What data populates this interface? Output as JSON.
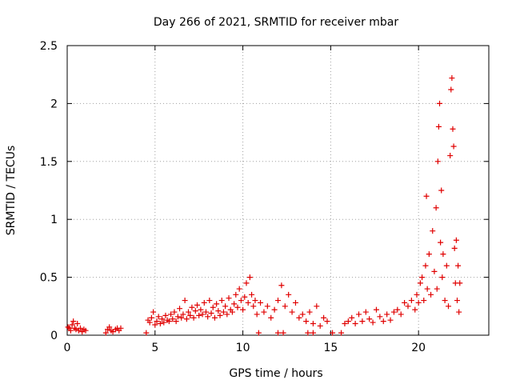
{
  "chart_data": {
    "type": "scatter",
    "title": "Day 266 of 2021, SRMTID for receiver mbar",
    "xlabel": "GPS time / hours",
    "ylabel": "SRMTID / TECUs",
    "xlim": [
      0,
      24
    ],
    "ylim": [
      0,
      2.5
    ],
    "x_ticks": [
      0,
      5,
      10,
      15,
      20
    ],
    "x_tick_labels": [
      "0",
      "5",
      "10",
      "15",
      "20"
    ],
    "y_ticks": [
      0,
      0.5,
      1,
      1.5,
      2,
      2.5
    ],
    "y_tick_labels": [
      "0",
      "0.5",
      "1",
      "1.5",
      "2",
      "2.5"
    ],
    "grid": true,
    "legend": "none",
    "marker": "plus",
    "series": [
      {
        "name": "SRMTID",
        "color": "#e00000",
        "points": [
          [
            0.05,
            0.07
          ],
          [
            0.12,
            0.06
          ],
          [
            0.2,
            0.04
          ],
          [
            0.28,
            0.09
          ],
          [
            0.35,
            0.12
          ],
          [
            0.42,
            0.06
          ],
          [
            0.5,
            0.05
          ],
          [
            0.58,
            0.1
          ],
          [
            0.65,
            0.04
          ],
          [
            0.75,
            0.06
          ],
          [
            0.85,
            0.03
          ],
          [
            0.95,
            0.05
          ],
          [
            1.05,
            0.04
          ],
          [
            2.2,
            0.02
          ],
          [
            2.3,
            0.05
          ],
          [
            2.4,
            0.07
          ],
          [
            2.5,
            0.04
          ],
          [
            2.6,
            0.03
          ],
          [
            2.75,
            0.05
          ],
          [
            2.85,
            0.06
          ],
          [
            2.95,
            0.04
          ],
          [
            3.05,
            0.06
          ],
          [
            4.5,
            0.02
          ],
          [
            4.6,
            0.13
          ],
          [
            4.7,
            0.11
          ],
          [
            4.8,
            0.15
          ],
          [
            4.9,
            0.2
          ],
          [
            5.0,
            0.09
          ],
          [
            5.1,
            0.12
          ],
          [
            5.2,
            0.16
          ],
          [
            5.3,
            0.1
          ],
          [
            5.4,
            0.14
          ],
          [
            5.5,
            0.11
          ],
          [
            5.6,
            0.17
          ],
          [
            5.7,
            0.13
          ],
          [
            5.8,
            0.12
          ],
          [
            5.9,
            0.18
          ],
          [
            6.0,
            0.14
          ],
          [
            6.1,
            0.2
          ],
          [
            6.2,
            0.12
          ],
          [
            6.3,
            0.16
          ],
          [
            6.4,
            0.23
          ],
          [
            6.5,
            0.15
          ],
          [
            6.6,
            0.18
          ],
          [
            6.7,
            0.3
          ],
          [
            6.8,
            0.14
          ],
          [
            6.9,
            0.2
          ],
          [
            7.0,
            0.17
          ],
          [
            7.1,
            0.24
          ],
          [
            7.2,
            0.15
          ],
          [
            7.3,
            0.21
          ],
          [
            7.4,
            0.26
          ],
          [
            7.5,
            0.17
          ],
          [
            7.6,
            0.22
          ],
          [
            7.7,
            0.18
          ],
          [
            7.8,
            0.28
          ],
          [
            7.9,
            0.2
          ],
          [
            8.0,
            0.16
          ],
          [
            8.1,
            0.3
          ],
          [
            8.2,
            0.19
          ],
          [
            8.3,
            0.24
          ],
          [
            8.4,
            0.15
          ],
          [
            8.5,
            0.27
          ],
          [
            8.6,
            0.21
          ],
          [
            8.7,
            0.17
          ],
          [
            8.8,
            0.3
          ],
          [
            8.9,
            0.2
          ],
          [
            9.0,
            0.25
          ],
          [
            9.1,
            0.18
          ],
          [
            9.2,
            0.32
          ],
          [
            9.3,
            0.22
          ],
          [
            9.4,
            0.2
          ],
          [
            9.5,
            0.27
          ],
          [
            9.6,
            0.35
          ],
          [
            9.7,
            0.24
          ],
          [
            9.8,
            0.4
          ],
          [
            9.9,
            0.3
          ],
          [
            10.0,
            0.22
          ],
          [
            10.1,
            0.33
          ],
          [
            10.2,
            0.45
          ],
          [
            10.3,
            0.28
          ],
          [
            10.4,
            0.5
          ],
          [
            10.5,
            0.35
          ],
          [
            10.6,
            0.25
          ],
          [
            10.7,
            0.3
          ],
          [
            10.8,
            0.18
          ],
          [
            10.9,
            0.02
          ],
          [
            11.0,
            0.28
          ],
          [
            11.2,
            0.2
          ],
          [
            11.4,
            0.25
          ],
          [
            11.6,
            0.15
          ],
          [
            11.8,
            0.22
          ],
          [
            12.0,
            0.3
          ],
          [
            12.2,
            0.43
          ],
          [
            12.4,
            0.25
          ],
          [
            12.6,
            0.35
          ],
          [
            12.8,
            0.2
          ],
          [
            13.0,
            0.28
          ],
          [
            13.2,
            0.15
          ],
          [
            13.4,
            0.18
          ],
          [
            13.6,
            0.12
          ],
          [
            13.8,
            0.2
          ],
          [
            14.0,
            0.1
          ],
          [
            14.2,
            0.25
          ],
          [
            14.4,
            0.08
          ],
          [
            14.6,
            0.15
          ],
          [
            14.8,
            0.12
          ],
          [
            12.0,
            0.02
          ],
          [
            12.3,
            0.02
          ],
          [
            13.7,
            0.02
          ],
          [
            14.0,
            0.02
          ],
          [
            15.1,
            0.02
          ],
          [
            15.6,
            0.02
          ],
          [
            15.8,
            0.1
          ],
          [
            16.0,
            0.12
          ],
          [
            16.2,
            0.15
          ],
          [
            16.4,
            0.1
          ],
          [
            16.6,
            0.18
          ],
          [
            16.8,
            0.12
          ],
          [
            17.0,
            0.2
          ],
          [
            17.2,
            0.14
          ],
          [
            17.4,
            0.11
          ],
          [
            17.6,
            0.22
          ],
          [
            17.8,
            0.16
          ],
          [
            18.0,
            0.12
          ],
          [
            18.2,
            0.18
          ],
          [
            18.4,
            0.13
          ],
          [
            18.6,
            0.2
          ],
          [
            18.8,
            0.22
          ],
          [
            19.0,
            0.18
          ],
          [
            19.2,
            0.28
          ],
          [
            19.4,
            0.25
          ],
          [
            19.6,
            0.3
          ],
          [
            19.8,
            0.22
          ],
          [
            19.9,
            0.35
          ],
          [
            20.0,
            0.28
          ],
          [
            20.1,
            0.45
          ],
          [
            20.2,
            0.5
          ],
          [
            20.3,
            0.3
          ],
          [
            20.4,
            0.6
          ],
          [
            20.45,
            1.2
          ],
          [
            20.5,
            0.4
          ],
          [
            20.6,
            0.7
          ],
          [
            20.7,
            0.35
          ],
          [
            20.8,
            0.9
          ],
          [
            20.9,
            0.55
          ],
          [
            21.0,
            1.1
          ],
          [
            21.05,
            0.4
          ],
          [
            21.1,
            1.5
          ],
          [
            21.15,
            1.8
          ],
          [
            21.2,
            2.0
          ],
          [
            21.25,
            0.8
          ],
          [
            21.3,
            1.25
          ],
          [
            21.35,
            0.5
          ],
          [
            21.4,
            0.7
          ],
          [
            21.5,
            0.3
          ],
          [
            21.6,
            0.6
          ],
          [
            21.7,
            0.25
          ],
          [
            21.8,
            1.55
          ],
          [
            21.85,
            2.12
          ],
          [
            21.9,
            2.22
          ],
          [
            21.95,
            1.78
          ],
          [
            22.0,
            1.63
          ],
          [
            22.05,
            0.75
          ],
          [
            22.1,
            0.45
          ],
          [
            22.15,
            0.82
          ],
          [
            22.2,
            0.3
          ],
          [
            22.25,
            0.6
          ],
          [
            22.3,
            0.2
          ],
          [
            22.35,
            0.45
          ]
        ]
      }
    ]
  }
}
